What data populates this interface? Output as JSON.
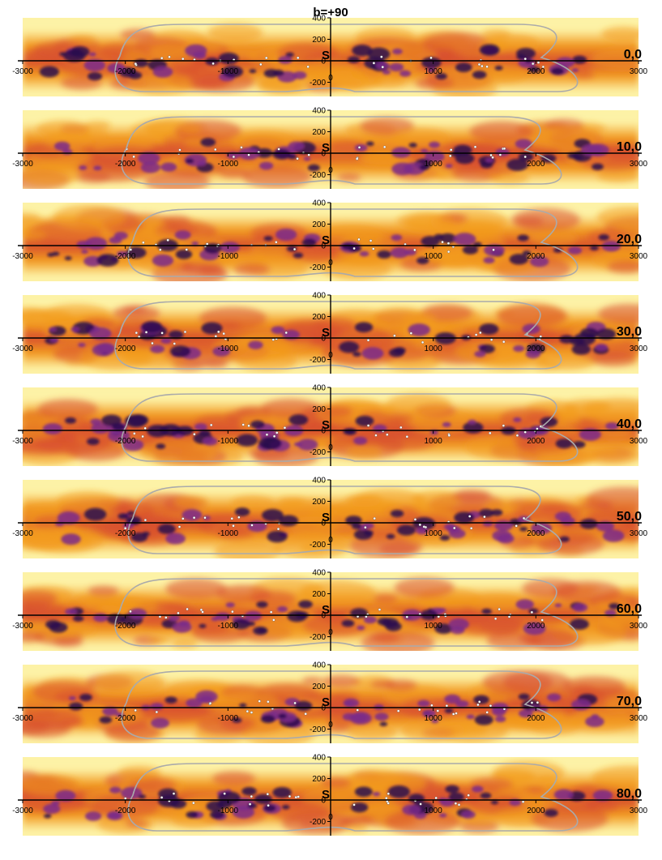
{
  "chart_data": {
    "type": "heatmap",
    "title": "b=+90",
    "x_ticks": [
      -3000,
      -2000,
      -1000,
      1000,
      2000,
      3000
    ],
    "y_ticks": [
      -400,
      -200,
      0,
      200,
      400
    ],
    "xlim": [
      -3000,
      3000
    ],
    "ylim": [
      -400,
      400
    ],
    "origin_marker": "S",
    "origin_small_marker": "0",
    "colors": {
      "high": "#2a0c4e",
      "mid_high": "#7b2a8a",
      "mid": "#d8502f",
      "mid_low": "#f29a1e",
      "low": "#fdf2a6",
      "contour": "#aaaaaa",
      "stars": "#ffffff"
    },
    "panels": [
      {
        "label": "0,0"
      },
      {
        "label": "10,0"
      },
      {
        "label": "20,0"
      },
      {
        "label": "30,0"
      },
      {
        "label": "40,0"
      },
      {
        "label": "50,0"
      },
      {
        "label": "60,0"
      },
      {
        "label": "70,0"
      },
      {
        "label": "80,0"
      }
    ]
  }
}
